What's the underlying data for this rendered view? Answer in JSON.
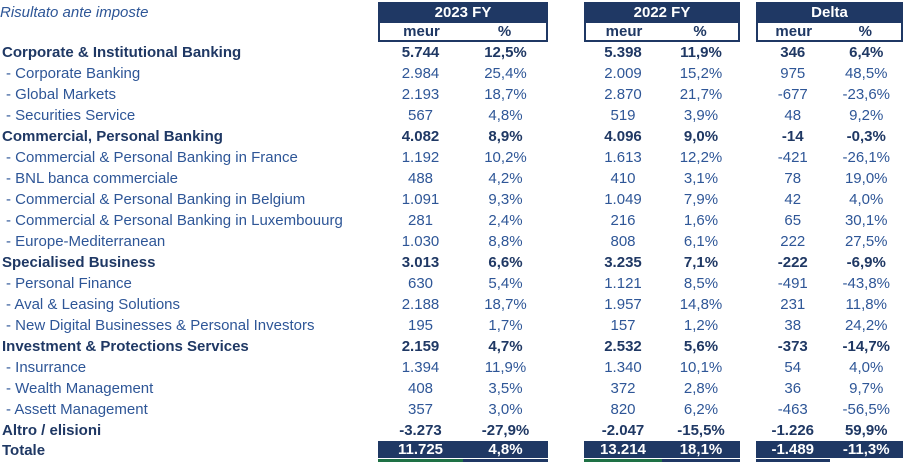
{
  "title": "Risultato ante imposte",
  "colors": {
    "navy": "#1F3864",
    "blue": "#2E5697",
    "green": "#1E7145",
    "white": "#FFFFFF"
  },
  "columns": [
    {
      "label": "2023 FY",
      "sub": [
        "meur",
        "%"
      ]
    },
    {
      "label": "2022 FY",
      "sub": [
        "meur",
        "%"
      ]
    },
    {
      "label": "Delta",
      "sub": [
        "meur",
        "%"
      ]
    }
  ],
  "rows": [
    {
      "label": "Corporate & Institutional Banking",
      "bold": true,
      "indent": false,
      "total": false,
      "values": [
        "5.744",
        "12,5%",
        "5.398",
        "11,9%",
        "346",
        "6,4%"
      ]
    },
    {
      "label": "- Corporate Banking",
      "bold": false,
      "indent": true,
      "total": false,
      "values": [
        "2.984",
        "25,4%",
        "2.009",
        "15,2%",
        "975",
        "48,5%"
      ]
    },
    {
      "label": "- Global Markets",
      "bold": false,
      "indent": true,
      "total": false,
      "values": [
        "2.193",
        "18,7%",
        "2.870",
        "21,7%",
        "-677",
        "-23,6%"
      ]
    },
    {
      "label": "- Securities Service",
      "bold": false,
      "indent": true,
      "total": false,
      "values": [
        "567",
        "4,8%",
        "519",
        "3,9%",
        "48",
        "9,2%"
      ]
    },
    {
      "label": "Commercial, Personal Banking",
      "bold": true,
      "indent": false,
      "total": false,
      "values": [
        "4.082",
        "8,9%",
        "4.096",
        "9,0%",
        "-14",
        "-0,3%"
      ]
    },
    {
      "label": "- Commercial & Personal Banking in France",
      "bold": false,
      "indent": true,
      "total": false,
      "values": [
        "1.192",
        "10,2%",
        "1.613",
        "12,2%",
        "-421",
        "-26,1%"
      ]
    },
    {
      "label": "- BNL banca commerciale",
      "bold": false,
      "indent": true,
      "total": false,
      "values": [
        "488",
        "4,2%",
        "410",
        "3,1%",
        "78",
        "19,0%"
      ]
    },
    {
      "label": "- Commercial & Personal Banking in Belgium",
      "bold": false,
      "indent": true,
      "total": false,
      "values": [
        "1.091",
        "9,3%",
        "1.049",
        "7,9%",
        "42",
        "4,0%"
      ]
    },
    {
      "label": "- Commercial & Personal Banking in Luxembouurg",
      "bold": false,
      "indent": true,
      "total": false,
      "values": [
        "281",
        "2,4%",
        "216",
        "1,6%",
        "65",
        "30,1%"
      ]
    },
    {
      "label": "- Europe-Mediterranean",
      "bold": false,
      "indent": true,
      "total": false,
      "values": [
        "1.030",
        "8,8%",
        "808",
        "6,1%",
        "222",
        "27,5%"
      ]
    },
    {
      "label": "Specialised Business",
      "bold": true,
      "indent": false,
      "total": false,
      "values": [
        "3.013",
        "6,6%",
        "3.235",
        "7,1%",
        "-222",
        "-6,9%"
      ]
    },
    {
      "label": "- Personal Finance",
      "bold": false,
      "indent": true,
      "total": false,
      "values": [
        "630",
        "5,4%",
        "1.121",
        "8,5%",
        "-491",
        "-43,8%"
      ]
    },
    {
      "label": "- Aval & Leasing Solutions",
      "bold": false,
      "indent": true,
      "total": false,
      "values": [
        "2.188",
        "18,7%",
        "1.957",
        "14,8%",
        "231",
        "11,8%"
      ]
    },
    {
      "label": "- New Digital Businesses & Personal Investors",
      "bold": false,
      "indent": true,
      "total": false,
      "values": [
        "195",
        "1,7%",
        "157",
        "1,2%",
        "38",
        "24,2%"
      ]
    },
    {
      "label": "Investment & Protections Services",
      "bold": true,
      "indent": false,
      "total": false,
      "values": [
        "2.159",
        "4,7%",
        "2.532",
        "5,6%",
        "-373",
        "-14,7%"
      ]
    },
    {
      "label": "- Insurrance",
      "bold": false,
      "indent": true,
      "total": false,
      "values": [
        "1.394",
        "11,9%",
        "1.340",
        "10,1%",
        "54",
        "4,0%"
      ]
    },
    {
      "label": "- Wealth Management",
      "bold": false,
      "indent": true,
      "total": false,
      "values": [
        "408",
        "3,5%",
        "372",
        "2,8%",
        "36",
        "9,7%"
      ]
    },
    {
      "label": "- Assett Management",
      "bold": false,
      "indent": true,
      "total": false,
      "values": [
        "357",
        "3,0%",
        "820",
        "6,2%",
        "-463",
        "-56,5%"
      ]
    },
    {
      "label": "Altro / elisioni",
      "bold": true,
      "indent": false,
      "total": false,
      "values": [
        "-3.273",
        "-27,9%",
        "-2.047",
        "-15,5%",
        "-1.226",
        "59,9%"
      ]
    },
    {
      "label": "Totale",
      "bold": true,
      "indent": false,
      "total": true,
      "values": [
        "11.725",
        "4,8%",
        "13.214",
        "18,1%",
        "-1.489",
        "-11,3%"
      ]
    }
  ]
}
